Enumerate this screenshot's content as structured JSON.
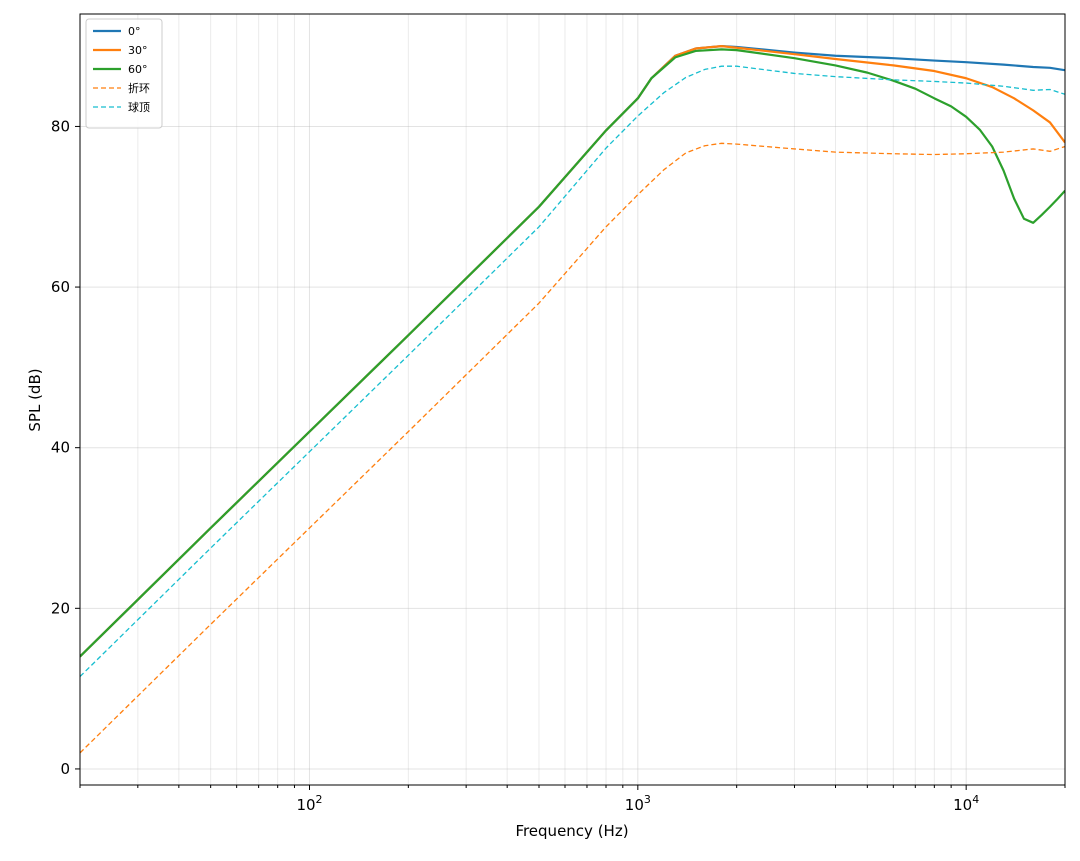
{
  "chart_data": {
    "type": "line",
    "xlabel": "Frequency (Hz)",
    "ylabel": "SPL (dB)",
    "x_scale": "log",
    "xlim": [
      20,
      20000
    ],
    "ylim": [
      -2,
      94
    ],
    "grid": true,
    "legend_position": "top-left",
    "x_ticks": [
      {
        "value": 100,
        "base": "10",
        "exp": "2"
      },
      {
        "value": 1000,
        "base": "10",
        "exp": "3"
      },
      {
        "value": 10000,
        "base": "10",
        "exp": "4"
      }
    ],
    "y_ticks": [
      {
        "value": 0,
        "label": "0"
      },
      {
        "value": 20,
        "label": "20"
      },
      {
        "value": 40,
        "label": "40"
      },
      {
        "value": 60,
        "label": "60"
      },
      {
        "value": 80,
        "label": "80"
      }
    ],
    "series": [
      {
        "name": "0°",
        "color": "#1f77b4",
        "style": "solid",
        "points": [
          [
            20,
            14.0
          ],
          [
            50,
            30.0
          ],
          [
            100,
            42.0
          ],
          [
            200,
            54.0
          ],
          [
            500,
            70.0
          ],
          [
            800,
            79.5
          ],
          [
            1000,
            83.5
          ],
          [
            1100,
            86.0
          ],
          [
            1300,
            88.8
          ],
          [
            1500,
            89.7
          ],
          [
            1800,
            90.0
          ],
          [
            2000,
            89.9
          ],
          [
            3000,
            89.2
          ],
          [
            4000,
            88.8
          ],
          [
            6000,
            88.5
          ],
          [
            8000,
            88.2
          ],
          [
            10000,
            88.0
          ],
          [
            13000,
            87.7
          ],
          [
            16000,
            87.4
          ],
          [
            18000,
            87.3
          ],
          [
            20000,
            87.0
          ]
        ]
      },
      {
        "name": "30°",
        "color": "#ff7f0e",
        "style": "solid",
        "points": [
          [
            20,
            14.0
          ],
          [
            50,
            30.0
          ],
          [
            100,
            42.0
          ],
          [
            200,
            54.0
          ],
          [
            500,
            70.0
          ],
          [
            800,
            79.5
          ],
          [
            1000,
            83.5
          ],
          [
            1100,
            86.0
          ],
          [
            1300,
            88.8
          ],
          [
            1500,
            89.7
          ],
          [
            1800,
            90.0
          ],
          [
            2000,
            89.8
          ],
          [
            3000,
            89.0
          ],
          [
            4000,
            88.4
          ],
          [
            6000,
            87.6
          ],
          [
            8000,
            86.9
          ],
          [
            10000,
            86.0
          ],
          [
            12000,
            84.9
          ],
          [
            14000,
            83.5
          ],
          [
            16000,
            82.0
          ],
          [
            18000,
            80.5
          ],
          [
            20000,
            78.0
          ]
        ]
      },
      {
        "name": "60°",
        "color": "#2ca02c",
        "style": "solid",
        "points": [
          [
            20,
            14.0
          ],
          [
            50,
            30.0
          ],
          [
            100,
            42.0
          ],
          [
            200,
            54.0
          ],
          [
            500,
            70.0
          ],
          [
            800,
            79.5
          ],
          [
            1000,
            83.5
          ],
          [
            1100,
            86.0
          ],
          [
            1300,
            88.6
          ],
          [
            1500,
            89.4
          ],
          [
            1800,
            89.6
          ],
          [
            2000,
            89.5
          ],
          [
            3000,
            88.5
          ],
          [
            4000,
            87.6
          ],
          [
            5000,
            86.7
          ],
          [
            6000,
            85.7
          ],
          [
            7000,
            84.7
          ],
          [
            8000,
            83.5
          ],
          [
            9000,
            82.5
          ],
          [
            10000,
            81.2
          ],
          [
            11000,
            79.6
          ],
          [
            12000,
            77.5
          ],
          [
            13000,
            74.5
          ],
          [
            14000,
            71.0
          ],
          [
            15000,
            68.5
          ],
          [
            16000,
            68.0
          ],
          [
            17000,
            69.0
          ],
          [
            18000,
            70.0
          ],
          [
            19000,
            71.0
          ],
          [
            20000,
            72.0
          ]
        ]
      },
      {
        "name": "折环",
        "color": "#ff7f0e",
        "style": "dashed",
        "points": [
          [
            20,
            2.0
          ],
          [
            50,
            18.0
          ],
          [
            100,
            30.0
          ],
          [
            200,
            42.0
          ],
          [
            500,
            58.0
          ],
          [
            800,
            67.5
          ],
          [
            1000,
            71.5
          ],
          [
            1200,
            74.6
          ],
          [
            1400,
            76.7
          ],
          [
            1600,
            77.6
          ],
          [
            1800,
            77.9
          ],
          [
            2000,
            77.8
          ],
          [
            3000,
            77.2
          ],
          [
            4000,
            76.8
          ],
          [
            6000,
            76.6
          ],
          [
            8000,
            76.5
          ],
          [
            10000,
            76.6
          ],
          [
            13000,
            76.8
          ],
          [
            16000,
            77.2
          ],
          [
            18000,
            76.9
          ],
          [
            20000,
            77.5
          ]
        ]
      },
      {
        "name": "球顶",
        "color": "#17becf",
        "style": "dashed",
        "points": [
          [
            20,
            11.5
          ],
          [
            50,
            27.5
          ],
          [
            100,
            39.5
          ],
          [
            200,
            51.5
          ],
          [
            500,
            67.5
          ],
          [
            800,
            77.3
          ],
          [
            1000,
            81.3
          ],
          [
            1200,
            84.2
          ],
          [
            1400,
            86.1
          ],
          [
            1600,
            87.1
          ],
          [
            1800,
            87.5
          ],
          [
            2000,
            87.5
          ],
          [
            3000,
            86.6
          ],
          [
            4000,
            86.2
          ],
          [
            6000,
            85.8
          ],
          [
            8000,
            85.6
          ],
          [
            10000,
            85.4
          ],
          [
            13000,
            85.0
          ],
          [
            16000,
            84.5
          ],
          [
            18000,
            84.6
          ],
          [
            20000,
            84.0
          ]
        ]
      }
    ]
  }
}
